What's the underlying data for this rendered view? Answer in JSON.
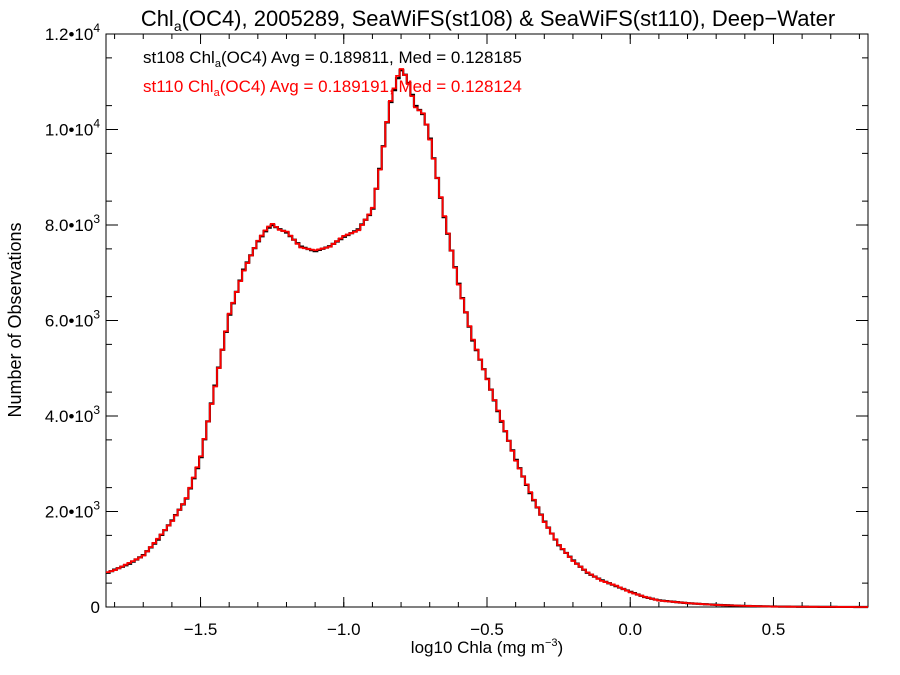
{
  "chart_data": {
    "type": "histogram",
    "title_parts": {
      "pre": "Chl",
      "sub": "a",
      "post": "(OC4), 2005289, SeaWiFS(st108) & SeaWiFS(st110), Deep−Water"
    },
    "xlabel_parts": {
      "pre": "log10 Chla (mg m",
      "sup": "−3",
      "post": ")"
    },
    "ylabel": "Number of Observations",
    "xlim": [
      -1.83,
      0.83
    ],
    "ylim": [
      0,
      12000
    ],
    "x_ticks": [
      -1.5,
      -1.0,
      -0.5,
      0.0,
      0.5
    ],
    "x_tick_labels": [
      "−1.5",
      "−1.0",
      "−0.5",
      "0.0",
      "0.5"
    ],
    "y_ticks": [
      0,
      2000,
      4000,
      6000,
      8000,
      10000,
      12000
    ],
    "y_tick_labels": [
      {
        "mant": "0",
        "exp": ""
      },
      {
        "mant": "2.0•10",
        "exp": "3"
      },
      {
        "mant": "4.0•10",
        "exp": "3"
      },
      {
        "mant": "6.0•10",
        "exp": "3"
      },
      {
        "mant": "8.0•10",
        "exp": "3"
      },
      {
        "mant": "1.0•10",
        "exp": "4"
      },
      {
        "mant": "1.2•10",
        "exp": "4"
      }
    ],
    "legend": [
      {
        "pre": "st108 Chl",
        "sub": "a",
        "post": "(OC4) Avg = 0.189811, Med = 0.128185",
        "color": "#000000"
      },
      {
        "pre": "st110 Chl",
        "sub": "a",
        "post": "(OC4) Avg = 0.189191, Med = 0.128124",
        "color": "#ff0000"
      }
    ],
    "series": [
      {
        "color": "#000000",
        "points": [
          [
            -1.83,
            700
          ],
          [
            -1.8,
            780
          ],
          [
            -1.75,
            900
          ],
          [
            -1.7,
            1080
          ],
          [
            -1.65,
            1400
          ],
          [
            -1.6,
            1800
          ],
          [
            -1.55,
            2250
          ],
          [
            -1.5,
            3100
          ],
          [
            -1.45,
            4600
          ],
          [
            -1.4,
            6100
          ],
          [
            -1.35,
            7050
          ],
          [
            -1.3,
            7650
          ],
          [
            -1.27,
            7900
          ],
          [
            -1.25,
            8000
          ],
          [
            -1.22,
            7900
          ],
          [
            -1.2,
            7850
          ],
          [
            -1.15,
            7550
          ],
          [
            -1.1,
            7450
          ],
          [
            -1.05,
            7550
          ],
          [
            -1.0,
            7750
          ],
          [
            -0.95,
            7900
          ],
          [
            -0.9,
            8300
          ],
          [
            -0.87,
            9300
          ],
          [
            -0.84,
            10500
          ],
          [
            -0.81,
            11100
          ],
          [
            -0.8,
            11250
          ],
          [
            -0.78,
            11100
          ],
          [
            -0.75,
            10500
          ],
          [
            -0.72,
            10300
          ],
          [
            -0.7,
            9850
          ],
          [
            -0.65,
            8200
          ],
          [
            -0.6,
            6800
          ],
          [
            -0.55,
            5600
          ],
          [
            -0.5,
            4800
          ],
          [
            -0.45,
            3900
          ],
          [
            -0.4,
            3100
          ],
          [
            -0.35,
            2400
          ],
          [
            -0.3,
            1800
          ],
          [
            -0.25,
            1300
          ],
          [
            -0.2,
            980
          ],
          [
            -0.15,
            720
          ],
          [
            -0.1,
            560
          ],
          [
            -0.05,
            440
          ],
          [
            0.0,
            320
          ],
          [
            0.05,
            210
          ],
          [
            0.1,
            140
          ],
          [
            0.2,
            80
          ],
          [
            0.3,
            45
          ],
          [
            0.4,
            22
          ],
          [
            0.5,
            10
          ],
          [
            0.6,
            5
          ],
          [
            0.7,
            2
          ],
          [
            0.83,
            0
          ]
        ]
      },
      {
        "color": "#ff0000",
        "points": [
          [
            -1.83,
            720
          ],
          [
            -1.8,
            770
          ],
          [
            -1.75,
            920
          ],
          [
            -1.7,
            1070
          ],
          [
            -1.65,
            1420
          ],
          [
            -1.6,
            1790
          ],
          [
            -1.55,
            2260
          ],
          [
            -1.5,
            3120
          ],
          [
            -1.45,
            4580
          ],
          [
            -1.4,
            6120
          ],
          [
            -1.35,
            7030
          ],
          [
            -1.3,
            7660
          ],
          [
            -1.27,
            7920
          ],
          [
            -1.25,
            8030
          ],
          [
            -1.22,
            7880
          ],
          [
            -1.2,
            7870
          ],
          [
            -1.15,
            7530
          ],
          [
            -1.1,
            7470
          ],
          [
            -1.05,
            7540
          ],
          [
            -1.0,
            7770
          ],
          [
            -0.95,
            7880
          ],
          [
            -0.9,
            8320
          ],
          [
            -0.87,
            9280
          ],
          [
            -0.84,
            10520
          ],
          [
            -0.81,
            11150
          ],
          [
            -0.8,
            11280
          ],
          [
            -0.78,
            11080
          ],
          [
            -0.75,
            10470
          ],
          [
            -0.72,
            10320
          ],
          [
            -0.7,
            9830
          ],
          [
            -0.65,
            8220
          ],
          [
            -0.6,
            6780
          ],
          [
            -0.55,
            5620
          ],
          [
            -0.5,
            4790
          ],
          [
            -0.45,
            3920
          ],
          [
            -0.4,
            3080
          ],
          [
            -0.35,
            2420
          ],
          [
            -0.3,
            1790
          ],
          [
            -0.25,
            1310
          ],
          [
            -0.2,
            970
          ],
          [
            -0.15,
            730
          ],
          [
            -0.1,
            550
          ],
          [
            -0.05,
            450
          ],
          [
            0.0,
            310
          ],
          [
            0.05,
            215
          ],
          [
            0.1,
            135
          ],
          [
            0.2,
            82
          ],
          [
            0.3,
            43
          ],
          [
            0.4,
            24
          ],
          [
            0.5,
            9
          ],
          [
            0.6,
            5
          ],
          [
            0.7,
            2
          ],
          [
            0.83,
            0
          ]
        ]
      }
    ]
  }
}
